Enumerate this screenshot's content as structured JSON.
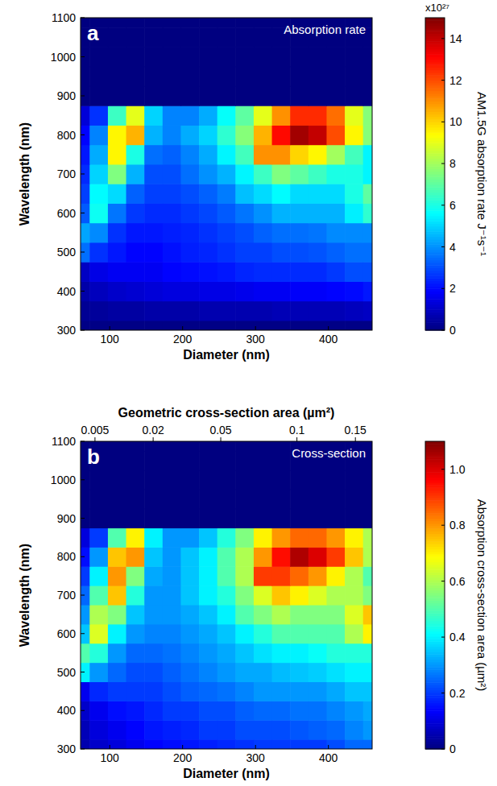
{
  "chart_data": [
    {
      "type": "heatmap",
      "panel_label": "a",
      "title": "Absorption rate",
      "xlabel": "Diameter (nm)",
      "ylabel": "Wavelength (nm)",
      "x": [
        60,
        85,
        110,
        135,
        160,
        185,
        210,
        235,
        260,
        285,
        310,
        335,
        360,
        385,
        410,
        435,
        460
      ],
      "y": [
        300,
        350,
        400,
        450,
        500,
        550,
        600,
        650,
        700,
        750,
        800,
        850,
        900,
        950,
        1000,
        1050,
        1100
      ],
      "xlim": [
        60,
        460
      ],
      "ylim": [
        300,
        1100
      ],
      "xticks": [
        100,
        200,
        300,
        400
      ],
      "yticks": [
        300,
        400,
        500,
        600,
        700,
        800,
        900,
        1000,
        1100
      ],
      "cells": [
        [
          0.1,
          0.1,
          0.1,
          0.1,
          0.1,
          0.1,
          0.1,
          0.1,
          0.1,
          0.1,
          0.1,
          0.1,
          0.1,
          0.1,
          0.1,
          0.1,
          0.1
        ],
        [
          0.3,
          0.4,
          0.5,
          0.5,
          0.6,
          0.6,
          0.6,
          0.7,
          0.7,
          0.7,
          0.7,
          0.8,
          0.8,
          0.8,
          0.8,
          0.9,
          1.0
        ],
        [
          0.6,
          0.9,
          1.1,
          1.2,
          1.3,
          1.4,
          1.4,
          1.5,
          1.5,
          1.6,
          1.7,
          1.7,
          1.8,
          1.8,
          1.9,
          2.0,
          2.2
        ],
        [
          1.0,
          1.5,
          1.7,
          1.7,
          1.7,
          1.9,
          2.0,
          2.1,
          2.2,
          2.4,
          2.5,
          2.5,
          2.5,
          2.5,
          2.7,
          3.0,
          3.0
        ],
        [
          3.5,
          2.6,
          2.2,
          1.9,
          1.9,
          2.1,
          2.3,
          2.4,
          2.6,
          2.8,
          2.8,
          3.0,
          3.0,
          3.1,
          3.3,
          3.5,
          3.5
        ],
        [
          4.3,
          3.9,
          2.6,
          2.2,
          2.2,
          2.3,
          2.4,
          2.6,
          2.8,
          3.0,
          3.3,
          3.5,
          3.5,
          3.6,
          3.9,
          3.9,
          3.9
        ],
        [
          3.2,
          5.8,
          3.6,
          2.7,
          2.5,
          2.5,
          2.7,
          2.9,
          3.2,
          3.6,
          4.0,
          4.5,
          4.5,
          4.5,
          4.5,
          5.4,
          6.3
        ],
        [
          2.8,
          5.6,
          5.1,
          3.3,
          2.8,
          2.8,
          3.0,
          3.3,
          3.7,
          4.7,
          5.1,
          5.6,
          5.1,
          5.1,
          5.1,
          6.0,
          7.0
        ],
        [
          2.5,
          5.0,
          7.5,
          4.5,
          3.0,
          3.0,
          3.5,
          4.0,
          4.5,
          5.5,
          6.5,
          7.5,
          7.0,
          6.5,
          6.0,
          6.0,
          5.5
        ],
        [
          2.2,
          4.4,
          9.5,
          6.0,
          3.5,
          3.3,
          3.8,
          4.4,
          5.5,
          6.6,
          11.0,
          11.0,
          10.0,
          9.5,
          8.0,
          6.6,
          5.5
        ],
        [
          1.9,
          3.8,
          9.5,
          10.5,
          4.5,
          3.8,
          4.4,
          5.0,
          6.3,
          7.6,
          10.5,
          13.0,
          14.5,
          14.0,
          12.0,
          9.5,
          7.6
        ],
        [
          1.3,
          2.6,
          6.5,
          9.0,
          5.0,
          3.8,
          3.8,
          4.4,
          5.7,
          7.0,
          9.0,
          11.0,
          12.5,
          12.5,
          11.5,
          9.0,
          7.6
        ],
        [
          0,
          0,
          0,
          0,
          0,
          0,
          0,
          0,
          0,
          0,
          0,
          0,
          0,
          0,
          0,
          0,
          0
        ],
        [
          0,
          0,
          0,
          0,
          0,
          0,
          0,
          0,
          0,
          0,
          0,
          0,
          0,
          0,
          0,
          0,
          0
        ],
        [
          0,
          0,
          0,
          0,
          0,
          0,
          0,
          0,
          0,
          0,
          0,
          0,
          0,
          0,
          0,
          0,
          0
        ],
        [
          0,
          0,
          0,
          0,
          0,
          0,
          0,
          0,
          0,
          0,
          0,
          0,
          0,
          0,
          0,
          0,
          0
        ],
        [
          0,
          0,
          0,
          0,
          0,
          0,
          0,
          0,
          0,
          0,
          0,
          0,
          0,
          0,
          0,
          0,
          0
        ]
      ],
      "colorbar_label": "AM1.5G absorption rate J⁻¹s⁻¹",
      "colorbar_multiplier": "x10²⁷",
      "colorbar_lim": [
        0,
        15
      ],
      "colorbar_ticks": [
        0,
        2,
        4,
        6,
        8,
        10,
        12,
        14
      ]
    },
    {
      "type": "heatmap",
      "panel_label": "b",
      "title": "Cross-section",
      "xlabel": "Diameter (nm)",
      "ylabel": "Wavelength (nm)",
      "x2label": "Geometric cross-section area (µm²)",
      "x2ticks": [
        0.005,
        0.02,
        0.05,
        0.1,
        0.15
      ],
      "x": [
        60,
        85,
        110,
        135,
        160,
        185,
        210,
        235,
        260,
        285,
        310,
        335,
        360,
        385,
        410,
        435,
        460
      ],
      "y": [
        300,
        350,
        400,
        450,
        500,
        550,
        600,
        650,
        700,
        750,
        800,
        850,
        900,
        950,
        1000,
        1050,
        1100
      ],
      "xlim": [
        60,
        460
      ],
      "ylim": [
        300,
        1100
      ],
      "xticks": [
        100,
        200,
        300,
        400
      ],
      "yticks": [
        300,
        400,
        500,
        600,
        700,
        800,
        900,
        1000,
        1100
      ],
      "cells": [
        [
          0.05,
          0.08,
          0.1,
          0.12,
          0.14,
          0.15,
          0.16,
          0.17,
          0.18,
          0.19,
          0.2,
          0.2,
          0.2,
          0.2,
          0.22,
          0.25,
          0.25
        ],
        [
          0.06,
          0.1,
          0.12,
          0.14,
          0.16,
          0.17,
          0.18,
          0.2,
          0.2,
          0.22,
          0.22,
          0.22,
          0.23,
          0.24,
          0.25,
          0.28,
          0.3
        ],
        [
          0.08,
          0.12,
          0.15,
          0.16,
          0.18,
          0.2,
          0.2,
          0.22,
          0.22,
          0.24,
          0.25,
          0.25,
          0.26,
          0.26,
          0.28,
          0.3,
          0.32
        ],
        [
          0.12,
          0.18,
          0.2,
          0.2,
          0.2,
          0.22,
          0.24,
          0.25,
          0.26,
          0.28,
          0.3,
          0.3,
          0.3,
          0.3,
          0.32,
          0.35,
          0.35
        ],
        [
          0.4,
          0.3,
          0.25,
          0.22,
          0.22,
          0.24,
          0.26,
          0.28,
          0.3,
          0.32,
          0.32,
          0.34,
          0.35,
          0.36,
          0.38,
          0.4,
          0.4
        ],
        [
          0.5,
          0.45,
          0.3,
          0.25,
          0.25,
          0.26,
          0.28,
          0.3,
          0.32,
          0.35,
          0.38,
          0.4,
          0.4,
          0.42,
          0.45,
          0.45,
          0.45
        ],
        [
          0.35,
          0.65,
          0.4,
          0.3,
          0.28,
          0.28,
          0.3,
          0.32,
          0.35,
          0.4,
          0.45,
          0.5,
          0.5,
          0.5,
          0.5,
          0.6,
          0.7
        ],
        [
          0.3,
          0.6,
          0.55,
          0.35,
          0.3,
          0.3,
          0.32,
          0.35,
          0.4,
          0.5,
          0.55,
          0.6,
          0.55,
          0.55,
          0.55,
          0.65,
          0.75
        ],
        [
          0.25,
          0.5,
          0.75,
          0.45,
          0.3,
          0.3,
          0.35,
          0.4,
          0.45,
          0.55,
          0.65,
          0.75,
          0.7,
          0.65,
          0.6,
          0.6,
          0.55
        ],
        [
          0.2,
          0.4,
          0.8,
          0.55,
          0.32,
          0.3,
          0.35,
          0.4,
          0.5,
          0.6,
          0.9,
          0.9,
          0.85,
          0.8,
          0.7,
          0.6,
          0.5
        ],
        [
          0.15,
          0.3,
          0.75,
          0.8,
          0.35,
          0.3,
          0.35,
          0.4,
          0.5,
          0.6,
          0.8,
          0.95,
          1.05,
          1.0,
          0.9,
          0.75,
          0.6
        ],
        [
          0.1,
          0.2,
          0.5,
          0.7,
          0.4,
          0.3,
          0.3,
          0.35,
          0.45,
          0.55,
          0.7,
          0.8,
          0.85,
          0.85,
          0.8,
          0.7,
          0.6
        ],
        [
          0,
          0,
          0,
          0,
          0,
          0,
          0,
          0,
          0,
          0,
          0,
          0,
          0,
          0,
          0,
          0,
          0
        ],
        [
          0,
          0,
          0,
          0,
          0,
          0,
          0,
          0,
          0,
          0,
          0,
          0,
          0,
          0,
          0,
          0,
          0
        ],
        [
          0,
          0,
          0,
          0,
          0,
          0,
          0,
          0,
          0,
          0,
          0,
          0,
          0,
          0,
          0,
          0,
          0
        ],
        [
          0,
          0,
          0,
          0,
          0,
          0,
          0,
          0,
          0,
          0,
          0,
          0,
          0,
          0,
          0,
          0,
          0
        ],
        [
          0,
          0,
          0,
          0,
          0,
          0,
          0,
          0,
          0,
          0,
          0,
          0,
          0,
          0,
          0,
          0,
          0
        ]
      ],
      "colorbar_label": "Absorption cross-section area (µm²)",
      "colorbar_lim": [
        0,
        1.1
      ],
      "colorbar_ticks": [
        0,
        0.2,
        0.4,
        0.6,
        0.8,
        {
          "value": 1,
          "label": "1.0"
        }
      ]
    }
  ]
}
